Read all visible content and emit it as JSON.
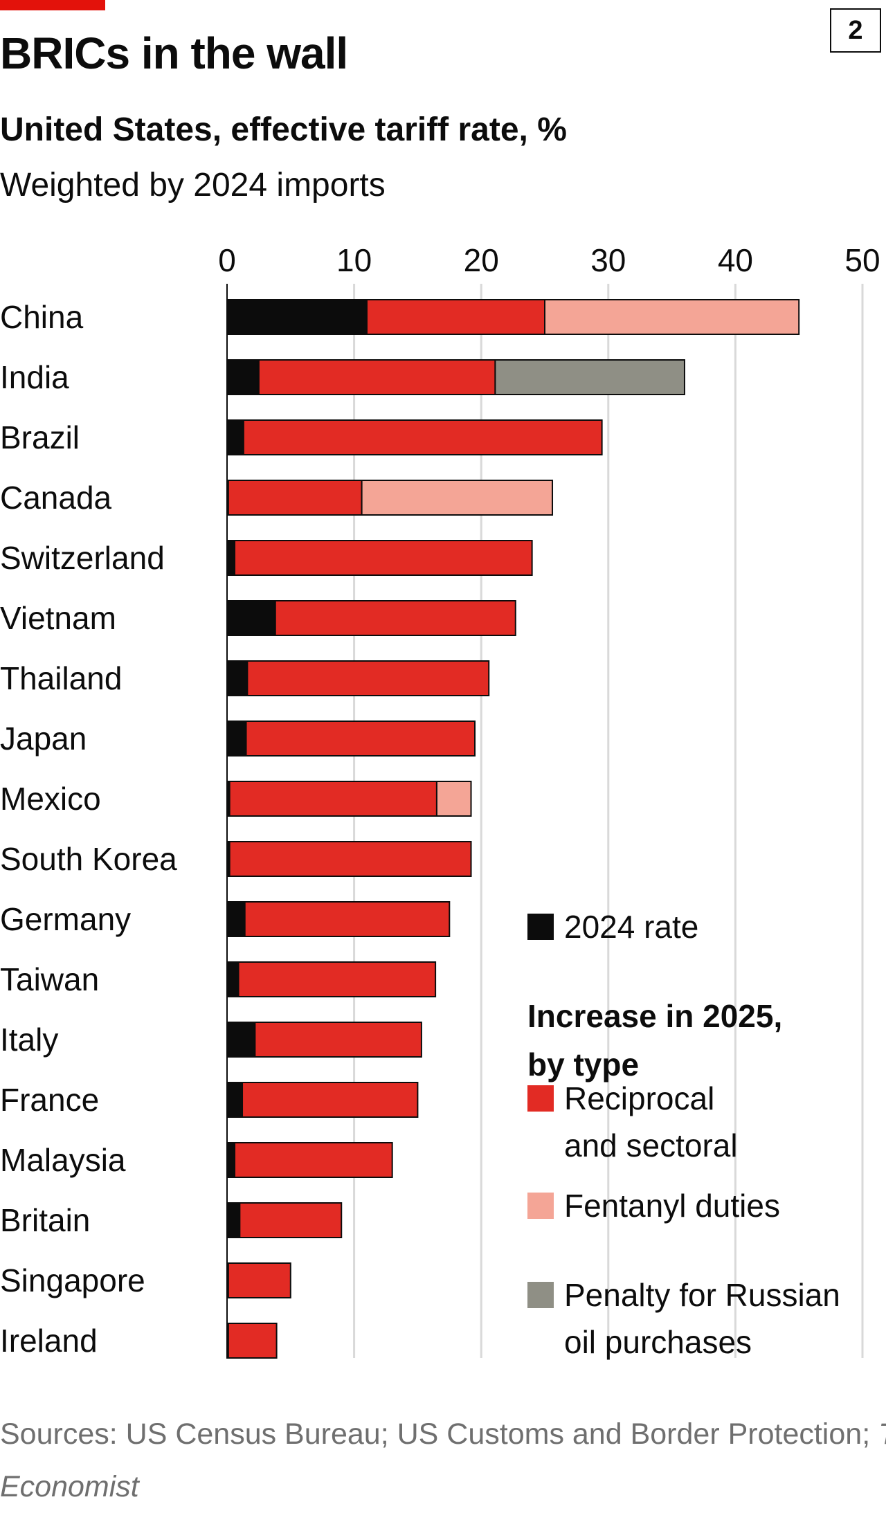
{
  "header": {
    "figure_number": "2",
    "title": "BRICs in the wall",
    "subtitle": "United States, effective tariff rate, %",
    "subtitle2": "Weighted by 2024 imports"
  },
  "colors": {
    "brand_bar": "#e3120b",
    "rate_2024": "#0c0c0c",
    "reciprocal": "#e22b24",
    "fentanyl": "#f4a596",
    "russian_oil": "#8f8f85",
    "gridline": "#d9d9d9",
    "source_text": "#6f6f6f"
  },
  "chart_data": {
    "type": "bar",
    "orientation": "horizontal",
    "stacked": true,
    "title": "BRICs in the wall",
    "subtitle": "United States, effective tariff rate, %",
    "note": "Weighted by 2024 imports",
    "xlim": [
      0,
      50
    ],
    "xticks": [
      0,
      10,
      20,
      30,
      40,
      50
    ],
    "tick_labels": [
      "0",
      "10",
      "20",
      "30",
      "40",
      "50"
    ],
    "axis_position": "top",
    "grid": true,
    "categories": [
      "China",
      "India",
      "Brazil",
      "Canada",
      "Switzerland",
      "Vietnam",
      "Thailand",
      "Japan",
      "Mexico",
      "South Korea",
      "Germany",
      "Taiwan",
      "Italy",
      "France",
      "Malaysia",
      "Britain",
      "Singapore",
      "Ireland"
    ],
    "series": [
      {
        "name": "2024 rate",
        "key": "rate_2024",
        "values": [
          11.0,
          2.5,
          1.3,
          0.1,
          0.6,
          3.8,
          1.6,
          1.5,
          0.2,
          0.2,
          1.4,
          0.9,
          2.2,
          1.2,
          0.6,
          1.0,
          0.1,
          0.1
        ]
      },
      {
        "name": "Reciprocal and sectoral",
        "key": "reciprocal",
        "values": [
          14.0,
          18.6,
          28.2,
          10.5,
          23.4,
          18.9,
          19.0,
          18.0,
          16.3,
          19.0,
          16.1,
          15.5,
          13.1,
          13.8,
          12.4,
          8.0,
          4.9,
          3.8
        ]
      },
      {
        "name": "Fentanyl duties",
        "key": "fentanyl",
        "values": [
          20.0,
          0,
          0,
          15.0,
          0,
          0,
          0,
          0,
          2.7,
          0,
          0,
          0,
          0,
          0,
          0,
          0,
          0,
          0
        ]
      },
      {
        "name": "Penalty for Russian oil purchases",
        "key": "russian_oil",
        "values": [
          0,
          14.9,
          0,
          0,
          0,
          0,
          0,
          0,
          0,
          0,
          0,
          0,
          0,
          0,
          0,
          0,
          0,
          0
        ]
      }
    ],
    "legend": {
      "position": "bottom-right",
      "rate_label": "2024 rate",
      "group_heading": [
        "Increase in 2025,",
        "by type"
      ],
      "items": [
        {
          "key": "reciprocal",
          "lines": [
            "Reciprocal",
            "and sectoral"
          ]
        },
        {
          "key": "fentanyl",
          "lines": [
            "Fentanyl duties"
          ]
        },
        {
          "key": "russian_oil",
          "lines": [
            "Penalty for Russian",
            "oil purchases"
          ]
        }
      ]
    }
  },
  "footer": {
    "sources_prefix": "Sources: US Census Bureau; US Customs and Border Protection; ",
    "sources_italic": "The Economist"
  }
}
